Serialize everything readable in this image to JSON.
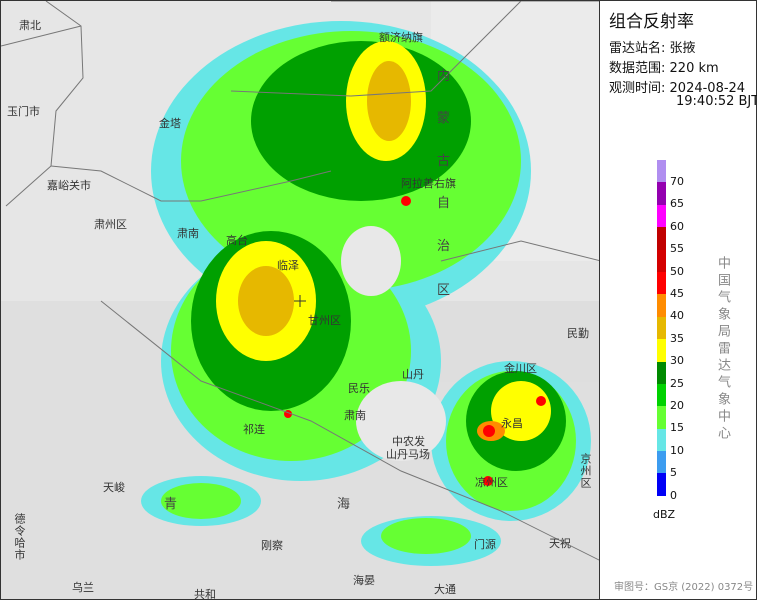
{
  "panel": {
    "title": "组合反射率",
    "station_label": "雷达站名:",
    "station": "张掖",
    "range_label": "数据范围:",
    "range": "220 km",
    "time_label": "观测时间:",
    "date": "2024-08-24",
    "time": "19:40:52 BJT",
    "legend": {
      "unit": "dBZ",
      "ticks": [
        "70",
        "65",
        "60",
        "55",
        "50",
        "45",
        "40",
        "35",
        "30",
        "25",
        "20",
        "15",
        "10",
        "5",
        "0"
      ],
      "colors": [
        "#b08ef0",
        "#9400b0",
        "#ff00ff",
        "#c00000",
        "#d40000",
        "#ff0000",
        "#ff8c00",
        "#e6b800",
        "#ffff00",
        "#008a00",
        "#00d200",
        "#66ff33",
        "#66e6e6",
        "#3c9cf0",
        "#0000f6"
      ]
    },
    "organization": "中国气象局雷达气象中心",
    "approval": "审图号：GS京 (2022) 0372号"
  },
  "map": {
    "labels": [
      "肃北",
      "玉门市",
      "嘉峪关市",
      "肃州区",
      "金塔",
      "肃南",
      "高台",
      "临泽",
      "额济纳旗",
      "内",
      "蒙",
      "古",
      "阿拉善右旗",
      "自",
      "治",
      "区",
      "民勤",
      "甘州区",
      "金川区",
      "山丹",
      "民乐",
      "永昌",
      "肃南",
      "中农发",
      "山丹马场",
      "凉州区",
      "祁连",
      "天峻",
      "青",
      "海",
      "门源",
      "天祝",
      "刚察",
      "德令哈市",
      "乌兰",
      "共和",
      "海晏",
      "大通",
      "京州区"
    ]
  }
}
